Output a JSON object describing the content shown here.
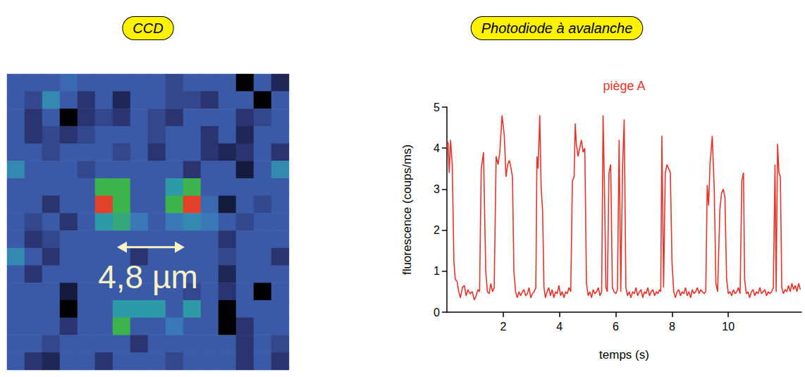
{
  "chart_data": [
    {
      "type": "heatmap",
      "heading": "CCD",
      "annotation": "4,8 µm",
      "tick_labels": false,
      "value_range": [
        0,
        10
      ],
      "cells": [
        [
          3,
          3,
          3,
          3.5,
          3,
          3,
          3,
          3,
          3,
          2.5,
          3,
          3,
          3,
          0,
          3,
          1.5
        ],
        [
          3,
          2.5,
          4.5,
          3,
          2,
          3,
          1.5,
          3,
          3,
          2.5,
          2.5,
          2,
          3,
          3,
          0,
          3
        ],
        [
          3,
          2,
          3,
          0,
          2,
          2.5,
          2,
          3,
          2.5,
          2,
          3,
          3,
          3,
          2,
          2.5,
          3
        ],
        [
          3,
          2,
          2.5,
          2,
          2.5,
          3,
          3,
          3,
          2.5,
          3,
          3,
          2,
          3,
          1.5,
          3,
          3
        ],
        [
          3,
          3,
          2.5,
          3,
          3,
          3,
          2.5,
          3,
          2,
          3,
          3,
          2,
          1.5,
          2,
          3,
          2
        ],
        [
          4.5,
          3,
          3,
          3,
          2.5,
          3,
          3,
          3,
          3,
          3,
          2,
          3,
          3,
          1,
          3,
          4.5
        ],
        [
          3,
          3,
          3,
          3,
          3,
          6,
          6,
          3,
          3,
          5,
          6,
          3,
          3,
          3,
          3,
          3
        ],
        [
          3,
          3,
          2,
          3,
          3,
          9.5,
          6,
          3,
          3,
          6,
          9.5,
          3.5,
          1,
          3,
          2.5,
          3
        ],
        [
          3,
          2.5,
          3,
          2,
          3,
          5,
          5.5,
          4,
          3,
          4,
          4.5,
          4,
          3,
          2.5,
          3,
          3
        ],
        [
          3,
          2,
          2.5,
          3,
          3,
          3,
          3,
          3,
          3,
          3,
          3,
          3,
          2,
          3,
          3,
          3
        ],
        [
          4.5,
          3,
          2,
          3,
          3,
          3,
          3,
          2,
          3,
          3,
          3,
          3,
          2.5,
          3,
          3,
          2
        ],
        [
          3,
          2,
          3,
          3,
          3,
          3,
          3,
          3,
          3,
          3,
          3,
          3,
          1.5,
          3,
          3,
          3
        ],
        [
          3,
          3,
          3,
          1,
          3,
          3,
          3,
          3,
          3,
          3,
          2.5,
          3,
          2,
          3,
          0,
          3
        ],
        [
          3,
          3,
          3,
          0,
          3,
          3,
          5,
          5,
          5,
          3,
          5,
          3,
          0,
          3,
          3,
          3
        ],
        [
          3,
          3,
          3,
          2,
          3,
          3,
          6,
          3,
          3,
          4,
          3,
          3,
          0,
          2,
          3,
          3
        ],
        [
          3,
          3,
          2.5,
          3,
          3,
          3,
          3,
          2,
          3,
          3,
          3,
          3,
          3,
          2,
          3,
          2.5
        ],
        [
          3,
          2,
          1.5,
          3,
          3,
          2,
          3,
          3,
          3,
          2.5,
          3,
          3,
          3,
          2,
          3,
          2
        ]
      ]
    },
    {
      "type": "line",
      "heading": "Photodiode à avalanche",
      "title": "piège A",
      "x_label": "temps (s)",
      "y_label": "fluorescence (coups/ms)",
      "color": "#e8332a",
      "grid": false,
      "xlim": [
        0,
        12.6
      ],
      "ylim": [
        0,
        5
      ],
      "xticks": [
        2,
        4,
        6,
        8,
        10
      ],
      "yticks": [
        0,
        1,
        2,
        3,
        4,
        5
      ],
      "x": [
        0,
        0.04,
        0.08,
        0.13,
        0.19,
        0.25,
        0.3,
        0.36,
        0.42,
        0.48,
        0.55,
        0.62,
        0.68,
        0.75,
        0.82,
        0.9,
        0.97,
        1.04,
        1.1,
        1.16,
        1.22,
        1.3,
        1.38,
        1.44,
        1.5,
        1.56,
        1.62,
        1.68,
        1.75,
        1.82,
        1.88,
        1.96,
        2.04,
        2.1,
        2.16,
        2.22,
        2.28,
        2.33,
        2.38,
        2.44,
        2.5,
        2.56,
        2.62,
        2.68,
        2.74,
        2.8,
        2.86,
        2.92,
        2.98,
        3.04,
        3.1,
        3.16,
        3.2,
        3.24,
        3.3,
        3.35,
        3.4,
        3.45,
        3.5,
        3.56,
        3.62,
        3.68,
        3.74,
        3.8,
        3.86,
        3.92,
        3.98,
        4.04,
        4.1,
        4.16,
        4.22,
        4.28,
        4.34,
        4.4,
        4.46,
        4.52,
        4.56,
        4.6,
        4.66,
        4.72,
        4.78,
        4.84,
        4.9,
        4.96,
        5.02,
        5.08,
        5.14,
        5.2,
        5.26,
        5.32,
        5.38,
        5.44,
        5.5,
        5.55,
        5.6,
        5.65,
        5.7,
        5.76,
        5.82,
        5.88,
        5.94,
        6.0,
        6.06,
        6.12,
        6.18,
        6.24,
        6.3,
        6.36,
        6.42,
        6.48,
        6.54,
        6.6,
        6.66,
        6.72,
        6.78,
        6.84,
        6.9,
        6.96,
        7.02,
        7.08,
        7.14,
        7.2,
        7.26,
        7.32,
        7.38,
        7.44,
        7.5,
        7.56,
        7.6,
        7.64,
        7.7,
        7.76,
        7.82,
        7.88,
        7.94,
        8.0,
        8.06,
        8.12,
        8.18,
        8.24,
        8.3,
        8.36,
        8.42,
        8.48,
        8.54,
        8.6,
        8.66,
        8.72,
        8.78,
        8.84,
        8.9,
        8.96,
        9.02,
        9.08,
        9.14,
        9.2,
        9.25,
        9.3,
        9.35,
        9.43,
        9.5,
        9.56,
        9.62,
        9.7,
        9.76,
        9.82,
        9.88,
        9.94,
        10.0,
        10.06,
        10.12,
        10.18,
        10.24,
        10.3,
        10.36,
        10.42,
        10.48,
        10.54,
        10.58,
        10.64,
        10.7,
        10.76,
        10.82,
        10.88,
        10.94,
        11.0,
        11.06,
        11.12,
        11.18,
        11.24,
        11.3,
        11.36,
        11.42,
        11.48,
        11.54,
        11.6,
        11.66,
        11.7,
        11.75,
        11.8,
        11.85,
        11.9,
        11.96,
        12.02,
        12.08,
        12.14,
        12.2,
        12.26,
        12.32,
        12.38,
        12.44,
        12.5,
        12.56
      ],
      "values": [
        4.0,
        4.15,
        3.4,
        4.2,
        3.6,
        1.2,
        0.8,
        0.75,
        0.5,
        0.35,
        0.6,
        0.65,
        0.4,
        0.55,
        0.45,
        0.5,
        0.3,
        0.4,
        0.55,
        0.5,
        3.5,
        3.9,
        1.0,
        0.5,
        0.45,
        0.7,
        0.5,
        0.6,
        3.8,
        3.6,
        3.9,
        4.8,
        4.3,
        3.3,
        3.6,
        3.7,
        3.5,
        3.3,
        1.0,
        0.5,
        0.35,
        0.5,
        0.4,
        0.5,
        0.55,
        0.4,
        0.45,
        0.6,
        0.35,
        0.45,
        0.5,
        0.6,
        3.8,
        3.5,
        4.8,
        3.0,
        2.5,
        0.6,
        0.35,
        0.5,
        0.6,
        0.4,
        0.55,
        0.35,
        0.5,
        0.45,
        0.65,
        0.4,
        0.5,
        0.35,
        0.5,
        0.45,
        0.6,
        0.5,
        3.2,
        3.3,
        4.6,
        4.1,
        3.8,
        4.0,
        4.2,
        3.9,
        4.0,
        0.7,
        0.4,
        0.5,
        0.35,
        0.55,
        0.45,
        0.5,
        0.6,
        0.4,
        0.5,
        4.8,
        3.0,
        0.6,
        0.5,
        3.4,
        3.6,
        0.6,
        0.5,
        0.45,
        0.55,
        4.2,
        0.5,
        3.5,
        4.7,
        0.6,
        0.4,
        0.5,
        0.35,
        0.5,
        0.45,
        0.6,
        0.4,
        0.5,
        0.55,
        0.35,
        0.5,
        0.45,
        0.6,
        0.4,
        0.5,
        0.55,
        0.4,
        0.5,
        0.45,
        0.55,
        0.5,
        4.3,
        0.6,
        3.4,
        3.6,
        3.5,
        3.4,
        1.2,
        0.5,
        0.35,
        0.5,
        0.55,
        0.4,
        0.5,
        0.45,
        0.6,
        0.4,
        0.5,
        0.35,
        0.55,
        0.45,
        0.5,
        0.6,
        0.45,
        0.55,
        0.5,
        0.45,
        0.5,
        3.1,
        2.6,
        3.6,
        4.3,
        3.0,
        0.7,
        0.5,
        2.5,
        2.9,
        3.0,
        2.8,
        0.8,
        0.45,
        0.5,
        0.4,
        0.55,
        0.45,
        0.5,
        0.6,
        0.45,
        3.2,
        3.4,
        0.8,
        0.45,
        0.5,
        0.35,
        0.5,
        0.55,
        0.4,
        0.5,
        0.45,
        0.6,
        0.45,
        0.5,
        0.55,
        0.4,
        0.5,
        0.45,
        0.5,
        0.6,
        3.6,
        0.5,
        4.1,
        3.4,
        3.3,
        0.6,
        0.45,
        0.55,
        0.5,
        0.65,
        0.5,
        0.7,
        0.55,
        0.65,
        0.5,
        0.7,
        0.55
      ]
    }
  ]
}
